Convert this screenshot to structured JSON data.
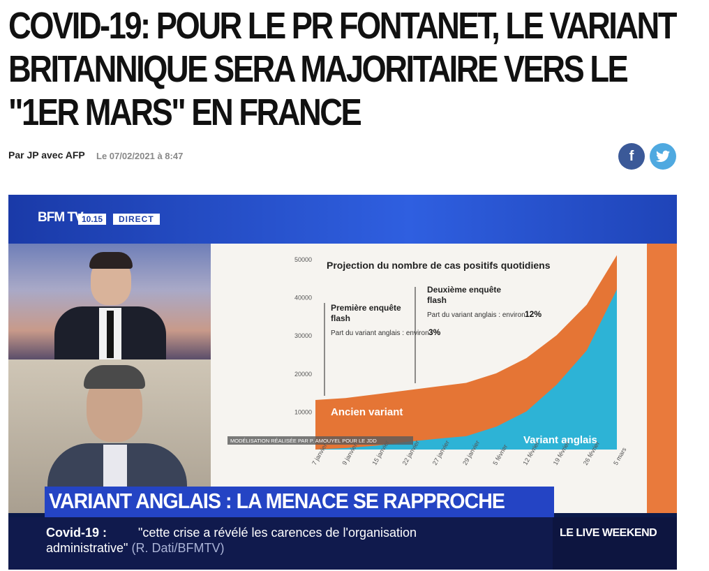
{
  "article": {
    "headline_lines": [
      "COVID-19: POUR LE PR FONTANET, LE VARIANT",
      "BRITANNIQUE SERA MAJORITAIRE VERS LE",
      "\"1ER MARS\" EN FRANCE"
    ],
    "byline": "Par JP avec AFP",
    "date": "Le 07/02/2021 à 8:47"
  },
  "share": {
    "facebook_icon": "f",
    "twitter_icon": "🐦"
  },
  "video": {
    "channel_logo": "BFM TV.",
    "time": "10.15",
    "live_tag": "DIRECT",
    "lower_third_title": "VARIANT ANGLAIS : LA MENACE SE RAPPROCHE",
    "ticker_label": "Covid-19 :",
    "ticker_text_line1": "\"cette crise a révélé les carences de l'organisation",
    "ticker_text_line2": "administrative\"",
    "ticker_source": "(R. Dati/BFMTV)",
    "program": "LE LIVE WEEKEND"
  },
  "chart_data": {
    "type": "area",
    "title": "Projection du nombre de cas positifs quotidiens",
    "x_labels": [
      "7 janvier",
      "9 janvier",
      "15 janvier",
      "22 janvier",
      "27 janvier",
      "29 janvier",
      "5 février",
      "12 février",
      "19 février",
      "26 février",
      "5 mars"
    ],
    "ylim": [
      0,
      50000
    ],
    "yticks": [
      "10000",
      "20000",
      "30000",
      "40000",
      "50000"
    ],
    "series": [
      {
        "name": "Ancien variant",
        "color": "#e57535"
      },
      {
        "name": "Variant anglais",
        "color": "#2db3d6"
      }
    ],
    "total_values": [
      13000,
      13500,
      14500,
      15500,
      16500,
      17500,
      20000,
      24000,
      30000,
      38000,
      51000
    ],
    "variant_values": [
      0,
      400,
      1000,
      2000,
      2800,
      3500,
      6000,
      10000,
      17000,
      26000,
      42000
    ],
    "annotations": [
      {
        "title": "Première enquête flash",
        "text": "Part du variant anglais : environ",
        "value": "3%"
      },
      {
        "title": "Deuxième enquête flash",
        "text": "Part du variant anglais : environ",
        "value": "12%"
      }
    ],
    "credit": "MODÉLISATION RÉALISÉE PAR P. AMOUYEL POUR LE JDD"
  }
}
